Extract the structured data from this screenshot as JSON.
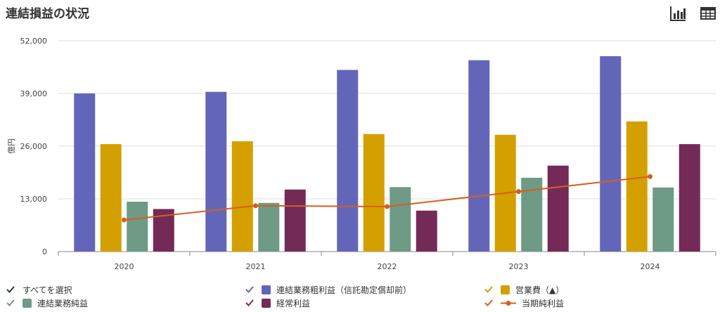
{
  "title": "連結損益の状況",
  "toolbar": {
    "bar_icon": "bar-chart-icon",
    "table_icon": "table-icon"
  },
  "legend": {
    "all_label": "すべてを選択",
    "items": [
      {
        "label": "連結業務粗利益（信託勘定償却前）",
        "color": "#6366b8"
      },
      {
        "label": "営業費（▲）",
        "color": "#d4a000"
      },
      {
        "label": "連結業務純益",
        "color": "#6e9a86"
      },
      {
        "label": "経常利益",
        "color": "#742a56"
      },
      {
        "label": "当期純利益",
        "color": "#d4601e"
      }
    ]
  },
  "chart_data": {
    "type": "bar",
    "categories": [
      "2020",
      "2021",
      "2022",
      "2023",
      "2024"
    ],
    "ylabel": "億円",
    "ylim": [
      0,
      52000
    ],
    "yticks": [
      "0",
      "13,000",
      "26,000",
      "39,000",
      "52,000"
    ],
    "grid": true,
    "series": [
      {
        "name": "連結業務粗利益（信託勘定償却前）",
        "type": "bar",
        "color": "#6366b8",
        "values": [
          39000,
          39400,
          44800,
          47200,
          48200
        ]
      },
      {
        "name": "営業費（▲）",
        "type": "bar",
        "color": "#d4a000",
        "values": [
          26500,
          27200,
          29000,
          28800,
          32100
        ]
      },
      {
        "name": "連結業務純益",
        "type": "bar",
        "color": "#6e9a86",
        "values": [
          12300,
          12000,
          15900,
          18200,
          15800
        ]
      },
      {
        "name": "経常利益",
        "type": "bar",
        "color": "#742a56",
        "values": [
          10500,
          15300,
          10100,
          21200,
          26500
        ]
      },
      {
        "name": "当期純利益",
        "type": "line",
        "color": "#d4601e",
        "values": [
          7800,
          11300,
          11100,
          14800,
          18500
        ]
      }
    ]
  }
}
